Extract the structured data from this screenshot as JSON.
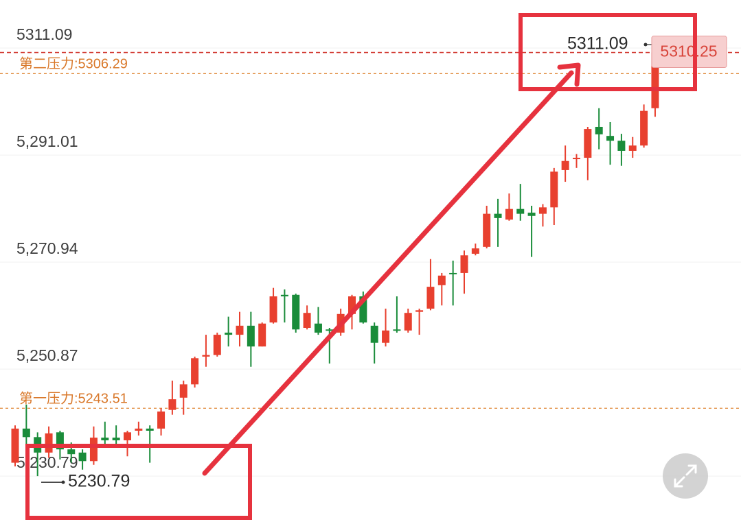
{
  "chart_data": {
    "type": "candlestick",
    "ylim": [
      5221.8,
      5320.1
    ],
    "yticks": [
      {
        "value": 5311.09,
        "label": "5311.09"
      },
      {
        "value": 5291.01,
        "label": "5,291.01"
      },
      {
        "value": 5270.94,
        "label": "5,270.94"
      },
      {
        "value": 5250.87,
        "label": "5,250.87"
      },
      {
        "value": 5230.79,
        "label": "5,230.79"
      }
    ],
    "grid": true,
    "up_color": "#e8402f",
    "down_color": "#1a8c3a",
    "levels": [
      {
        "value": 5306.29,
        "label": "第二压力:5306.29"
      },
      {
        "value": 5243.51,
        "label": "第一压力:5243.51"
      }
    ],
    "last_price": 5310.25,
    "high_marker": 5311.09,
    "low_marker": 5230.79,
    "series": [
      {
        "open": [
          5233.3,
          5239.7,
          5238.1,
          5235.2,
          5239.0,
          5235.8,
          5235.2,
          5233.6,
          5238.0,
          5238.0,
          5237.5,
          5239.3,
          5239.7,
          5239.7,
          5243.2,
          5245.5,
          5248.0,
          5253.2,
          5253.5,
          5257.7,
          5257.3,
          5259.0,
          5255.1,
          5259.6,
          5264.8,
          5264.8,
          5258.6,
          5259.4,
          5258.3,
          5257.7,
          5261.2,
          5264.5,
          5259.0,
          5255.8,
          5258.3,
          5258.1,
          5261.6,
          5262.2,
          5266.6,
          5268.9,
          5268.9,
          5272.5,
          5273.8,
          5280.0,
          5278.9,
          5280.9,
          5280.2,
          5280.0,
          5281.2,
          5288.2,
          5290.3,
          5290.5,
          5296.3,
          5294.6,
          5293.7,
          5291.8,
          5292.8,
          5299.8
        ],
        "close": [
          5239.7,
          5238.1,
          5235.2,
          5238.8,
          5235.8,
          5234.9,
          5233.6,
          5238.0,
          5237.5,
          5237.5,
          5239.0,
          5239.7,
          5239.3,
          5242.9,
          5245.2,
          5248.0,
          5252.9,
          5253.5,
          5257.3,
          5257.3,
          5259.0,
          5255.1,
          5259.4,
          5264.5,
          5264.5,
          5258.3,
          5261.4,
          5257.7,
          5258.1,
          5261.2,
          5264.5,
          5259.6,
          5255.8,
          5258.1,
          5258.1,
          5261.4,
          5261.9,
          5266.3,
          5268.4,
          5268.8,
          5272.2,
          5273.5,
          5280.0,
          5279.2,
          5280.9,
          5280.0,
          5279.6,
          5281.2,
          5287.9,
          5289.9,
          5290.5,
          5295.9,
          5294.9,
          5293.7,
          5291.8,
          5292.8,
          5299.3,
          5310.25
        ],
        "high": [
          5240.3,
          5244.2,
          5239.0,
          5240.1,
          5239.3,
          5237.1,
          5235.8,
          5240.1,
          5241.0,
          5240.3,
          5239.3,
          5241.0,
          5240.3,
          5243.5,
          5248.7,
          5248.7,
          5253.2,
          5257.3,
          5257.7,
          5260.7,
          5261.6,
          5261.6,
          5259.6,
          5266.1,
          5265.8,
          5265.0,
          5262.8,
          5262.5,
          5258.6,
          5262.2,
          5264.8,
          5265.4,
          5259.6,
          5262.2,
          5264.5,
          5262.2,
          5262.2,
          5271.5,
          5268.9,
          5271.2,
          5273.1,
          5274.4,
          5281.5,
          5282.8,
          5283.8,
          5285.6,
          5281.5,
          5281.8,
          5288.6,
          5292.8,
          5291.2,
          5296.3,
          5299.8,
          5297.2,
          5295.0,
          5294.4,
          5300.5,
          5311.09
        ],
        "low": [
          5232.6,
          5236.5,
          5230.79,
          5234.2,
          5233.9,
          5233.3,
          5232.0,
          5232.9,
          5236.7,
          5236.5,
          5234.5,
          5238.4,
          5233.3,
          5238.4,
          5242.3,
          5242.3,
          5247.4,
          5251.3,
          5253.2,
          5255.1,
          5255.1,
          5251.3,
          5255.1,
          5259.4,
          5259.6,
          5257.7,
          5258.3,
          5257.3,
          5251.9,
          5257.1,
          5258.3,
          5259.4,
          5251.9,
          5255.1,
          5257.7,
          5257.7,
          5257.3,
          5261.9,
          5262.8,
          5262.8,
          5265.0,
          5272.2,
          5273.5,
          5273.8,
          5278.7,
          5278.7,
          5271.9,
          5277.6,
          5277.9,
          5286.0,
          5288.6,
          5286.3,
          5292.1,
          5289.2,
          5289.0,
          5290.5,
          5292.4,
          5298.2
        ]
      }
    ]
  }
}
